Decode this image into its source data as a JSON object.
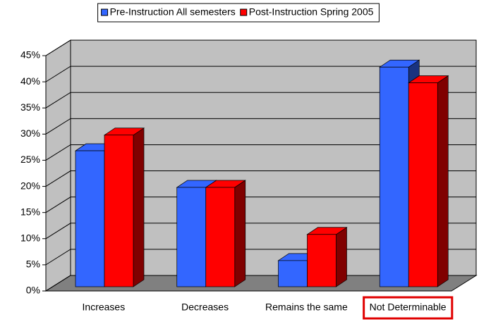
{
  "chart_data": {
    "type": "bar3d",
    "categories": [
      "Increases",
      "Decreases",
      "Remains the same",
      "Not Determinable"
    ],
    "series": [
      {
        "name": "Pre-Instruction All semesters",
        "color": "#3366ff",
        "values": [
          26,
          19,
          5,
          42
        ]
      },
      {
        "name": "Post-Instruction Spring 2005",
        "color": "#ff0000",
        "values": [
          29,
          19,
          10,
          39
        ]
      }
    ],
    "ylim": [
      0,
      45
    ],
    "yticks": [
      {
        "value": 0,
        "label": "0%"
      },
      {
        "value": 5,
        "label": "5%"
      },
      {
        "value": 10,
        "label": "10%"
      },
      {
        "value": 15,
        "label": "15%"
      },
      {
        "value": 20,
        "label": "20%"
      },
      {
        "value": 25,
        "label": "25%"
      },
      {
        "value": 30,
        "label": "30%"
      },
      {
        "value": 35,
        "label": "35%"
      },
      {
        "value": 40,
        "label": "40%"
      },
      {
        "value": 45,
        "label": "45%"
      }
    ],
    "grid": true
  }
}
